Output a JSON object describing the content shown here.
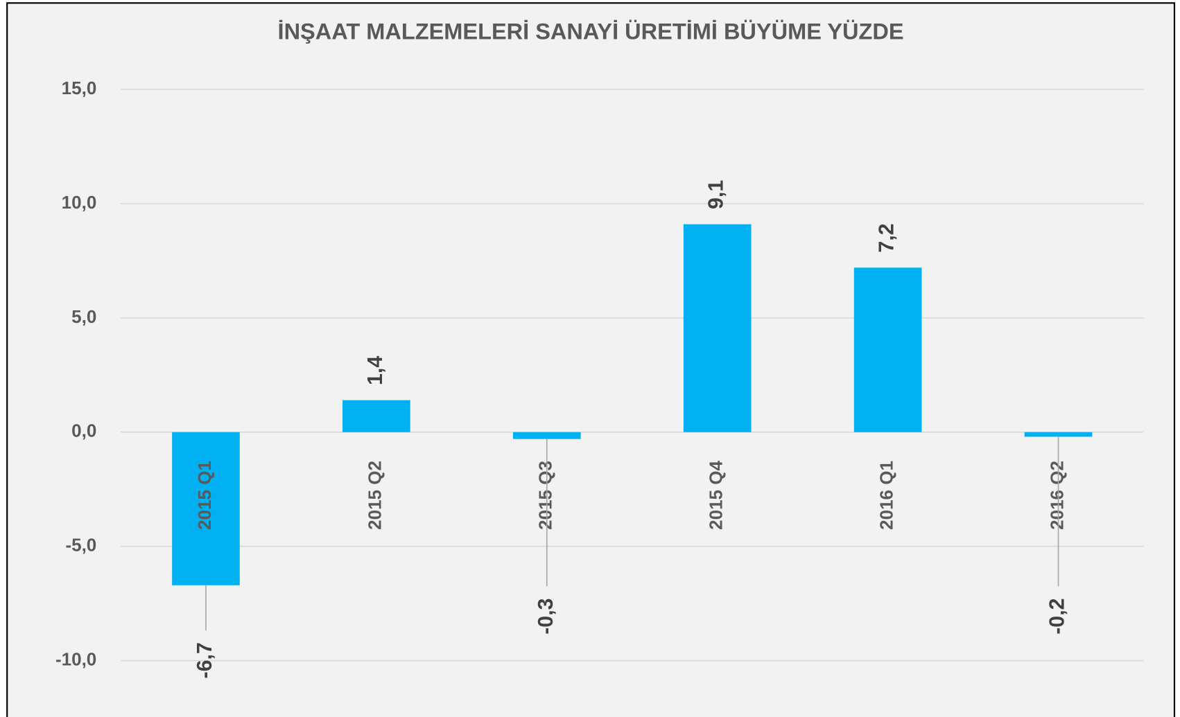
{
  "chart_data": {
    "type": "bar",
    "title": "İNŞAAT MALZEMELERİ SANAYİ ÜRETİMİ BÜYÜME YÜZDE",
    "categories": [
      "2015 Q1",
      "2015 Q2",
      "2015 Q3",
      "2015 Q4",
      "2016 Q1",
      "2016 Q2"
    ],
    "values": [
      -6.7,
      1.4,
      -0.3,
      9.1,
      7.2,
      -0.2
    ],
    "value_labels": [
      "-6,7",
      "1,4",
      "-0,3",
      "9,1",
      "7,2",
      "-0,2"
    ],
    "color": "#00b0f0",
    "ylim": [
      -10,
      15
    ],
    "yticks": [
      {
        "value": -10,
        "label": "-10,0"
      },
      {
        "value": -5,
        "label": "-5,0"
      },
      {
        "value": 0,
        "label": "0,0"
      },
      {
        "value": 5,
        "label": "5,0"
      },
      {
        "value": 10,
        "label": "10,0"
      },
      {
        "value": 15,
        "label": "15,0"
      }
    ],
    "grid": true
  }
}
